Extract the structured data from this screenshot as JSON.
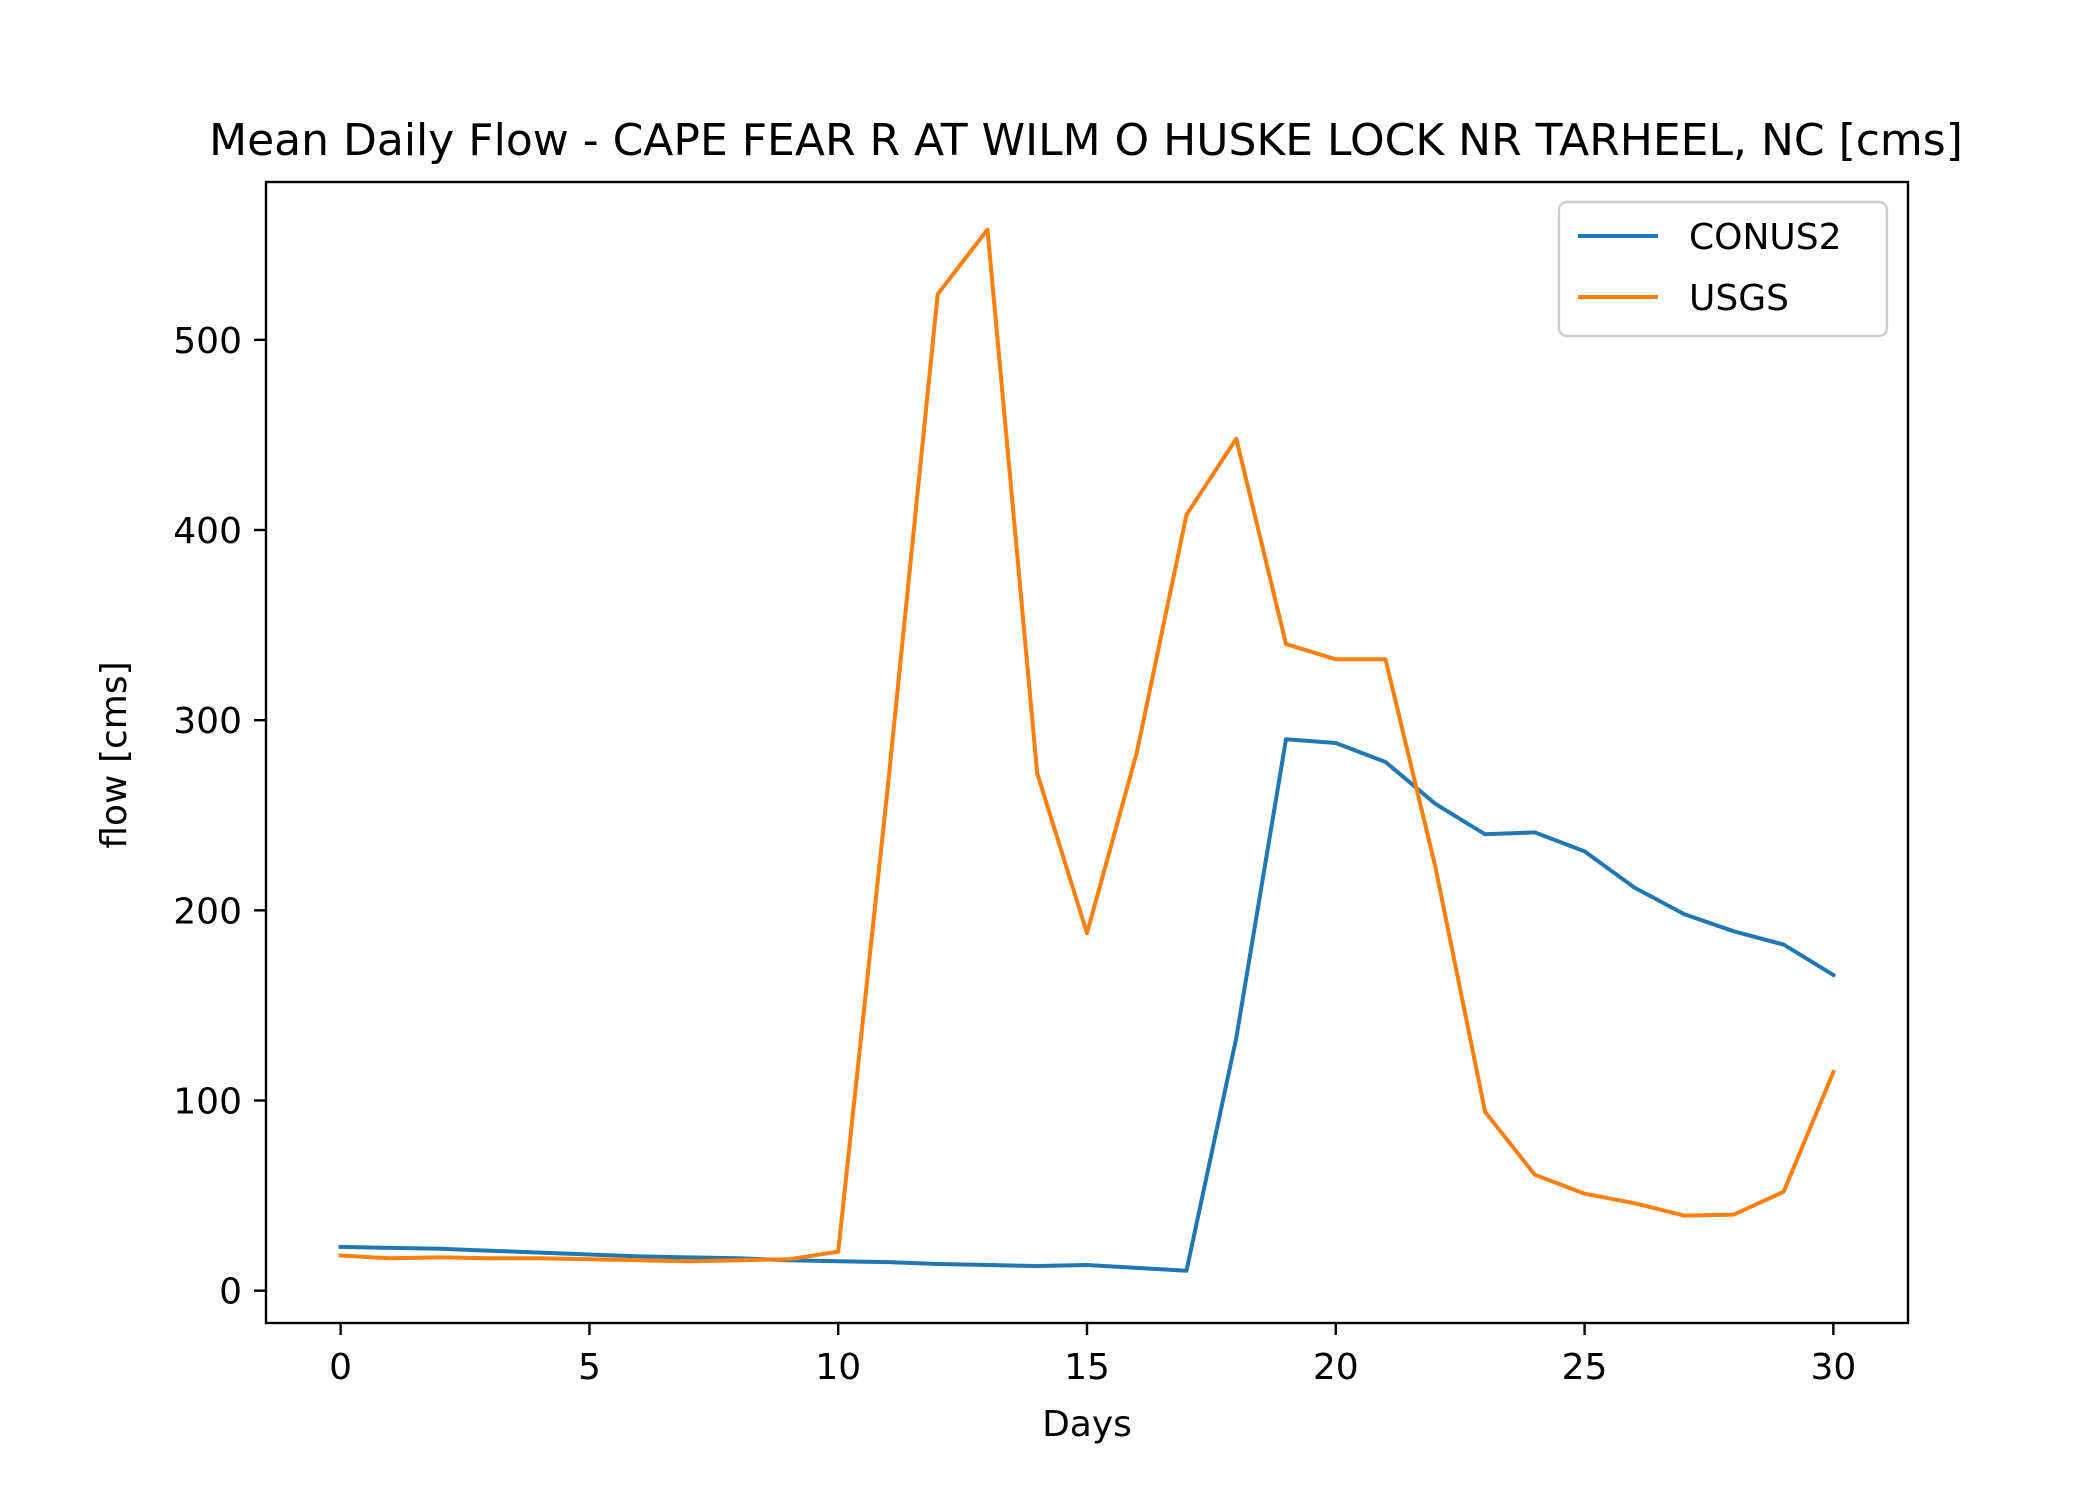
{
  "chart_data": {
    "type": "line",
    "title": "Mean Daily Flow - CAPE FEAR R AT WILM O HUSKE LOCK NR TARHEEL, NC [cms]",
    "xlabel": "Days",
    "ylabel": "flow [cms]",
    "xlim": [
      -1.5,
      31.5
    ],
    "ylim": [
      -17,
      583
    ],
    "xticks": [
      0,
      5,
      10,
      15,
      20,
      25,
      30
    ],
    "yticks": [
      0,
      100,
      200,
      300,
      400,
      500
    ],
    "grid": false,
    "legend": "top-right",
    "x": [
      0,
      1,
      2,
      3,
      4,
      5,
      6,
      7,
      8,
      9,
      10,
      11,
      12,
      13,
      14,
      15,
      16,
      17,
      18,
      19,
      20,
      21,
      22,
      23,
      24,
      25,
      26,
      27,
      28,
      29,
      30
    ],
    "series": [
      {
        "name": "CONUS2",
        "color": "#1f77b4",
        "values": [
          23,
          22.5,
          22,
          21,
          20,
          19,
          18,
          17.5,
          17,
          16,
          15.5,
          15,
          14,
          13.5,
          13,
          13.5,
          12,
          10.5,
          133,
          290,
          288,
          278,
          256,
          240,
          241,
          231,
          212,
          198,
          189,
          182,
          166
        ]
      },
      {
        "name": "USGS",
        "color": "#ff7f0e",
        "values": [
          18.5,
          17,
          17.5,
          17,
          17,
          16.5,
          16,
          15.5,
          16,
          16.5,
          20.5,
          266,
          524,
          558,
          272,
          188,
          283,
          408,
          448,
          340,
          332,
          332,
          223,
          94,
          61,
          51,
          46,
          39.5,
          40,
          52,
          115
        ]
      }
    ]
  }
}
